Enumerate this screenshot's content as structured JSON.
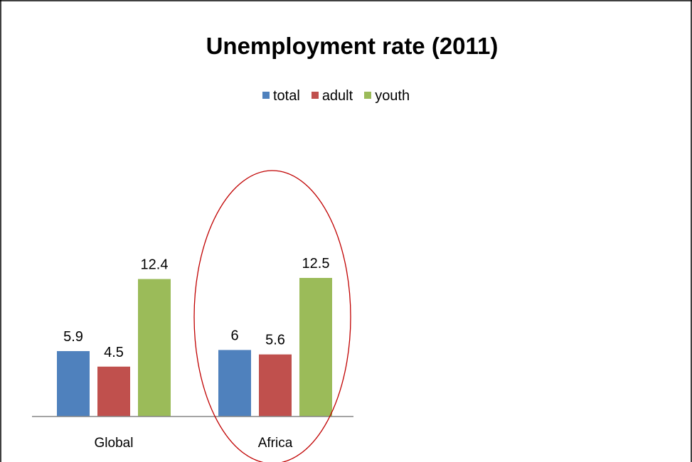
{
  "chart_data": {
    "type": "bar",
    "title": "Unemployment rate  (2011)",
    "categories": [
      "Global",
      "Africa"
    ],
    "series": [
      {
        "name": "total",
        "color": "#4F81BD",
        "values": [
          5.9,
          6
        ]
      },
      {
        "name": "adult",
        "color": "#C0504D",
        "values": [
          4.5,
          5.6
        ]
      },
      {
        "name": "youth",
        "color": "#9BBB59",
        "values": [
          12.4,
          12.5
        ]
      }
    ],
    "data_labels": [
      [
        "5.9",
        "4.5",
        "12.4"
      ],
      [
        "6",
        "5.6",
        "12.5"
      ]
    ],
    "legend_position": "top",
    "grid": false,
    "ylim": [
      0,
      12.5
    ],
    "highlight": {
      "category": "Africa",
      "shape": "ellipse",
      "color": "#C00000"
    }
  }
}
